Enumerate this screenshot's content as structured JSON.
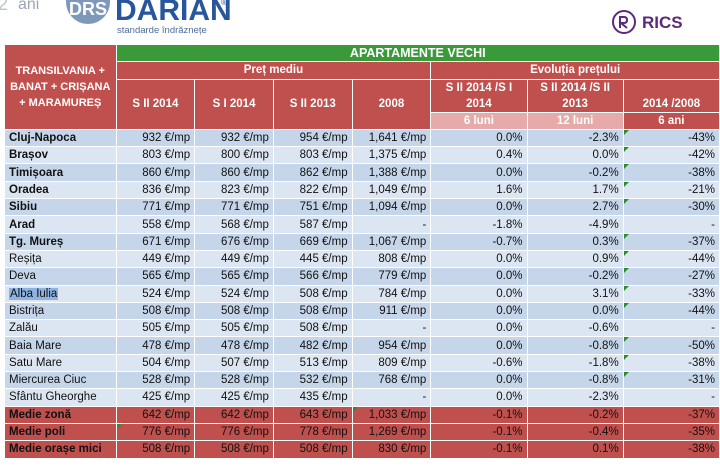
{
  "logo": {
    "anniversary": "ani",
    "badge": "DRS",
    "brand": "DARIAN",
    "registered": "®",
    "tagline": "standarde îndrăznețe",
    "partner": "RICS"
  },
  "table": {
    "title": "APARTAMENTE VECHI",
    "region_header": "TRANSILVANIA + BANAT + CRIȘANA + MARAMUREȘ",
    "group_price": "Preț mediu",
    "group_evolution": "Evoluția prețului",
    "price_columns": [
      "S II 2014",
      "S I 2014",
      "S II 2013",
      "2008"
    ],
    "evolution_columns": [
      {
        "label": "S II 2014 /S I 2014",
        "period": "6 luni"
      },
      {
        "label": "S II 2014 /S II 2013",
        "period": "12 luni"
      },
      {
        "label": "2014 /2008",
        "period": "6 ani"
      }
    ],
    "rows": [
      {
        "city": "Cluj-Napoca",
        "s2_2014": "932 €/mp",
        "s1_2014": "932 €/mp",
        "s2_2013": "954 €/mp",
        "y2008": "1,641 €/mp",
        "e6": "0.0%",
        "e12": "-2.3%",
        "e6y": "-43%"
      },
      {
        "city": "Brașov",
        "s2_2014": "803 €/mp",
        "s1_2014": "800 €/mp",
        "s2_2013": "803 €/mp",
        "y2008": "1,375 €/mp",
        "e6": "0.4%",
        "e12": "0.0%",
        "e6y": "-42%"
      },
      {
        "city": "Timișoara",
        "s2_2014": "860 €/mp",
        "s1_2014": "860 €/mp",
        "s2_2013": "862 €/mp",
        "y2008": "1,388 €/mp",
        "e6": "0.0%",
        "e12": "-0.2%",
        "e6y": "-38%"
      },
      {
        "city": "Oradea",
        "s2_2014": "836 €/mp",
        "s1_2014": "823 €/mp",
        "s2_2013": "822 €/mp",
        "y2008": "1,049 €/mp",
        "e6": "1.6%",
        "e12": "1.7%",
        "e6y": "-21%"
      },
      {
        "city": "Sibiu",
        "s2_2014": "771 €/mp",
        "s1_2014": "771 €/mp",
        "s2_2013": "751 €/mp",
        "y2008": "1,094 €/mp",
        "e6": "0.0%",
        "e12": "2.7%",
        "e6y": "-30%"
      },
      {
        "city": "Arad",
        "s2_2014": "558 €/mp",
        "s1_2014": "568 €/mp",
        "s2_2013": "587 €/mp",
        "y2008": "-",
        "e6": "-1.8%",
        "e12": "-4.9%",
        "e6y": "-"
      },
      {
        "city": "Tg. Mureș",
        "s2_2014": "671 €/mp",
        "s1_2014": "676 €/mp",
        "s2_2013": "669 €/mp",
        "y2008": "1,067 €/mp",
        "e6": "-0.7%",
        "e12": "0.3%",
        "e6y": "-37%"
      },
      {
        "city": "Reșița",
        "s2_2014": "449 €/mp",
        "s1_2014": "449 €/mp",
        "s2_2013": "445 €/mp",
        "y2008": "808 €/mp",
        "e6": "0.0%",
        "e12": "0.9%",
        "e6y": "-44%"
      },
      {
        "city": "Deva",
        "s2_2014": "565 €/mp",
        "s1_2014": "565 €/mp",
        "s2_2013": "566 €/mp",
        "y2008": "779 €/mp",
        "e6": "0.0%",
        "e12": "-0.2%",
        "e6y": "-27%"
      },
      {
        "city": "Alba Iulia",
        "s2_2014": "524 €/mp",
        "s1_2014": "524 €/mp",
        "s2_2013": "508 €/mp",
        "y2008": "784 €/mp",
        "e6": "0.0%",
        "e12": "3.1%",
        "e6y": "-33%"
      },
      {
        "city": "Bistrița",
        "s2_2014": "508 €/mp",
        "s1_2014": "508 €/mp",
        "s2_2013": "508 €/mp",
        "y2008": "911 €/mp",
        "e6": "0.0%",
        "e12": "0.0%",
        "e6y": "-44%"
      },
      {
        "city": "Zalău",
        "s2_2014": "505 €/mp",
        "s1_2014": "505 €/mp",
        "s2_2013": "508 €/mp",
        "y2008": "-",
        "e6": "0.0%",
        "e12": "-0.6%",
        "e6y": "-"
      },
      {
        "city": "Baia Mare",
        "s2_2014": "478 €/mp",
        "s1_2014": "478 €/mp",
        "s2_2013": "482 €/mp",
        "y2008": "954 €/mp",
        "e6": "0.0%",
        "e12": "-0.8%",
        "e6y": "-50%"
      },
      {
        "city": "Satu Mare",
        "s2_2014": "504 €/mp",
        "s1_2014": "507 €/mp",
        "s2_2013": "513 €/mp",
        "y2008": "809 €/mp",
        "e6": "-0.6%",
        "e12": "-1.8%",
        "e6y": "-38%"
      },
      {
        "city": "Miercurea Ciuc",
        "s2_2014": "528 €/mp",
        "s1_2014": "528 €/mp",
        "s2_2013": "532 €/mp",
        "y2008": "768 €/mp",
        "e6": "0.0%",
        "e12": "-0.8%",
        "e6y": "-31%"
      },
      {
        "city": "Sfântu Gheorghe",
        "s2_2014": "425 €/mp",
        "s1_2014": "425 €/mp",
        "s2_2013": "435 €/mp",
        "y2008": "-",
        "e6": "0.0%",
        "e12": "-2.3%",
        "e6y": "-"
      }
    ],
    "summary": [
      {
        "city": "Medie zonă",
        "s2_2014": "642 €/mp",
        "s1_2014": "642 €/mp",
        "s2_2013": "643 €/mp",
        "y2008": "1,033 €/mp",
        "e6": "-0.1%",
        "e12": "-0.2%",
        "e6y": "-37%"
      },
      {
        "city": "Medie poli",
        "s2_2014": "776 €/mp",
        "s1_2014": "776 €/mp",
        "s2_2013": "778 €/mp",
        "y2008": "1,269 €/mp",
        "e6": "-0.1%",
        "e12": "-0.4%",
        "e6y": "-35%"
      },
      {
        "city": "Medie orașe mici",
        "s2_2014": "508 €/mp",
        "s1_2014": "508 €/mp",
        "s2_2013": "508 €/mp",
        "y2008": "830 €/mp",
        "e6": "-0.1%",
        "e12": "0.1%",
        "e6y": "-38%"
      }
    ],
    "selected_city": "Alba Iulia"
  }
}
